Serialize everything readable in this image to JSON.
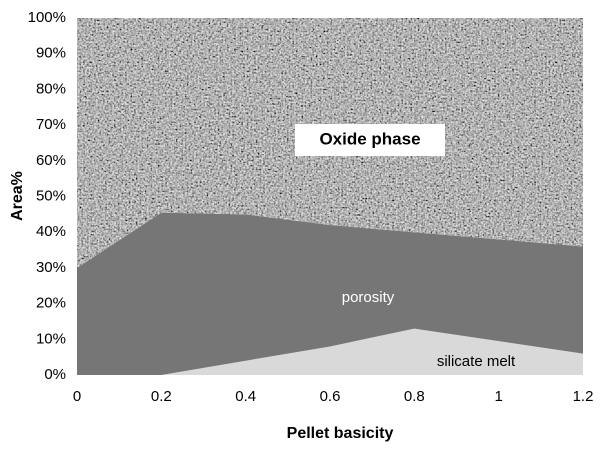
{
  "chart_data": {
    "type": "stacked-area",
    "x_label": "Pellet basicity",
    "y_label": "Area%",
    "x": [
      0,
      0.2,
      0.4,
      0.6,
      0.8,
      1.2
    ],
    "series": [
      {
        "name": "silicate melt",
        "color": "#d9d9d9",
        "values": [
          0,
          0,
          4,
          8,
          13,
          6
        ]
      },
      {
        "name": "porosity",
        "color": "#767676",
        "values": [
          30,
          45.5,
          41,
          34,
          27,
          30
        ]
      },
      {
        "name": "Oxide phase",
        "color": "#a6a6a6",
        "values": [
          70,
          54.5,
          55,
          58,
          60,
          64
        ]
      }
    ],
    "xlim": [
      0,
      1.2
    ],
    "xticks": [
      0,
      0.2,
      0.4,
      0.6,
      0.8,
      1,
      1.2
    ],
    "ylim": [
      0,
      100
    ],
    "yticks": [
      {
        "value": 0,
        "label": "0%"
      },
      {
        "value": 10,
        "label": "10%"
      },
      {
        "value": 20,
        "label": "20%"
      },
      {
        "value": 30,
        "label": "30%"
      },
      {
        "value": 40,
        "label": "40%"
      },
      {
        "value": 50,
        "label": "50%"
      },
      {
        "value": 60,
        "label": "60%"
      },
      {
        "value": 70,
        "label": "70%"
      },
      {
        "value": 80,
        "label": "80%"
      },
      {
        "value": 90,
        "label": "90%"
      },
      {
        "value": 100,
        "label": "100%"
      }
    ],
    "grid": false
  }
}
